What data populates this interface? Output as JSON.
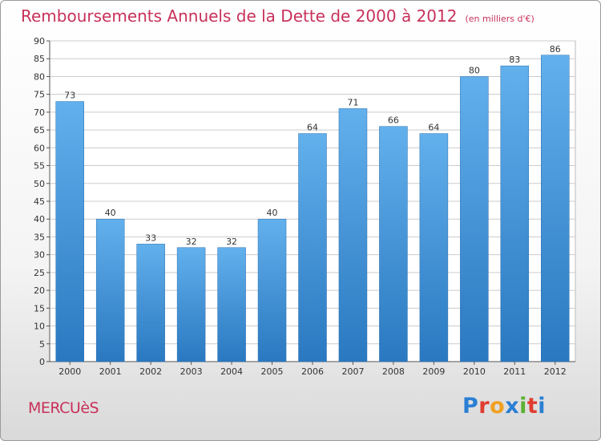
{
  "header": {
    "title": "Remboursements Annuels de la Dette de 2000 à 2012",
    "subtitle": "(en milliers d'€)"
  },
  "footer": {
    "commune": "MERCUèS",
    "logo_text": "Proxiti",
    "logo_colors": [
      "#2a7fd4",
      "#e03c31",
      "#f0a020",
      "#2a7fd4",
      "#5bb030",
      "#e03c31",
      "#2a7fd4"
    ]
  },
  "colors": {
    "bar": "#3a8fd9",
    "bar_light": "#62b0ec",
    "bar_dark": "#2a78c0",
    "title": "#c8315a",
    "grid": "#cccccc"
  },
  "chart_data": {
    "type": "bar",
    "categories": [
      "2000",
      "2001",
      "2002",
      "2003",
      "2004",
      "2005",
      "2006",
      "2007",
      "2008",
      "2009",
      "2010",
      "2011",
      "2012"
    ],
    "values": [
      73,
      40,
      33,
      32,
      32,
      40,
      64,
      71,
      66,
      64,
      80,
      83,
      86
    ],
    "ylim": [
      0,
      90
    ],
    "yticks": [
      0,
      5,
      10,
      15,
      20,
      25,
      30,
      35,
      40,
      45,
      50,
      55,
      60,
      65,
      70,
      75,
      80,
      85,
      90
    ],
    "grid": true
  }
}
